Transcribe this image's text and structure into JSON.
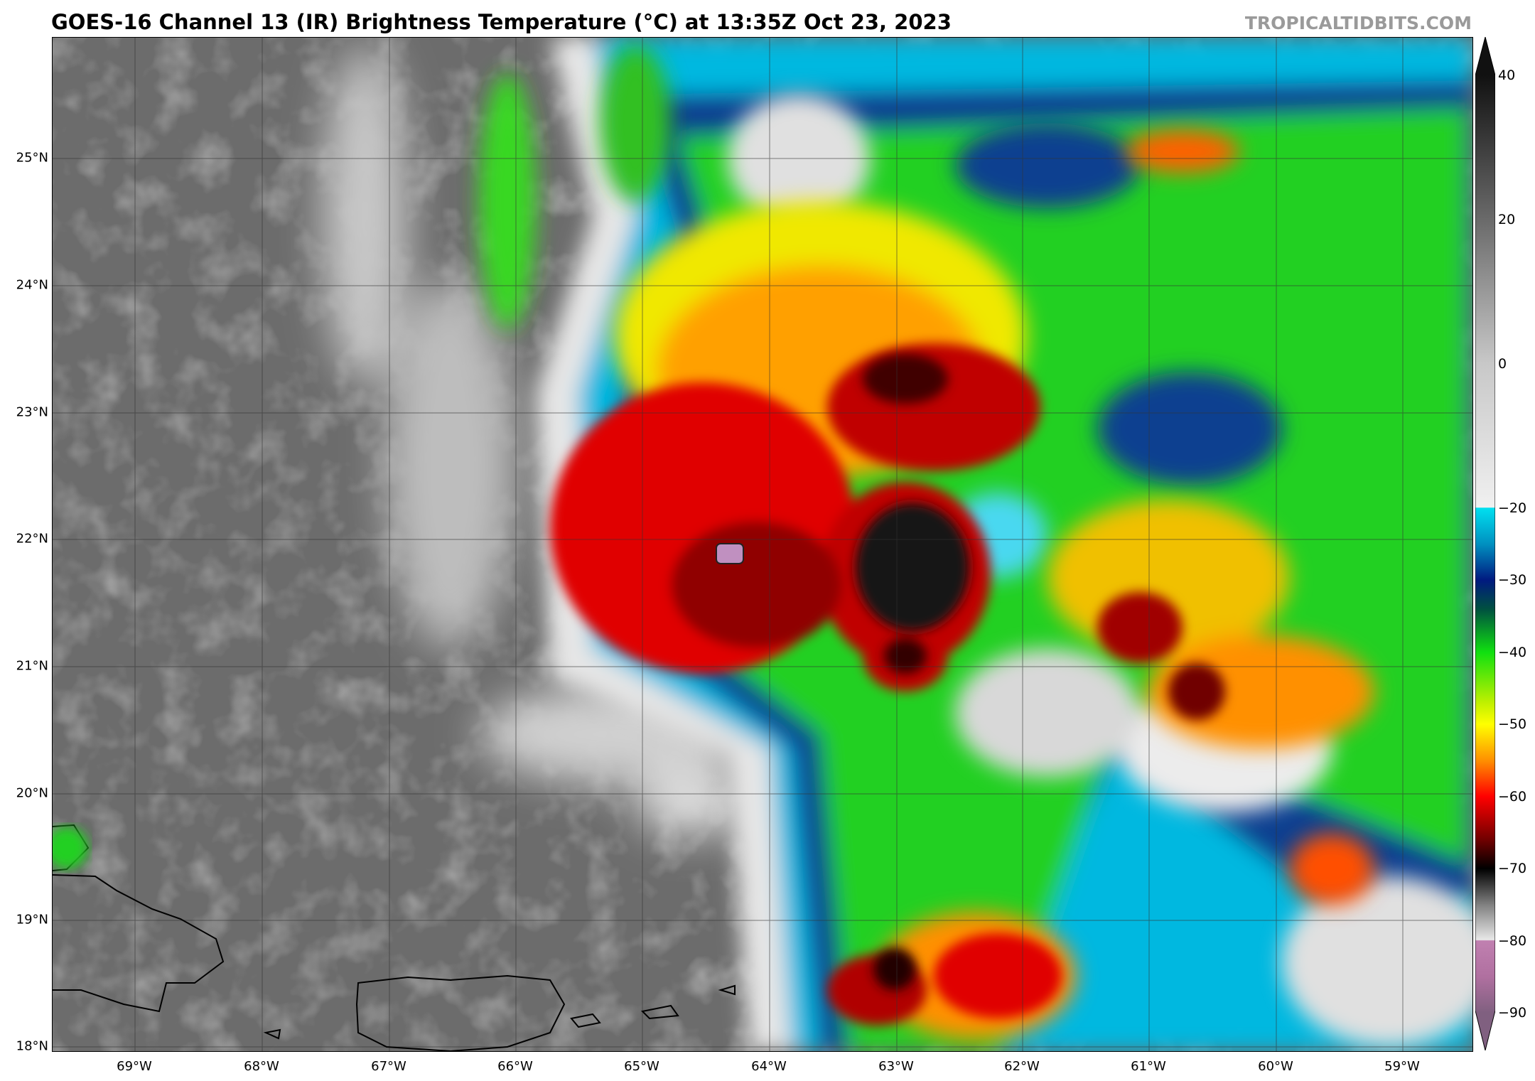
{
  "title": "GOES-16 Channel 13 (IR) Brightness Temperature (°C) at 13:35Z Oct 23, 2023",
  "watermark": "TROPICALTIDBITS.COM",
  "lat_labels": [
    "25°N",
    "24°N",
    "23°N",
    "22°N",
    "21°N",
    "20°N",
    "19°N",
    "18°N"
  ],
  "lon_labels": [
    "69°W",
    "68°W",
    "67°W",
    "66°W",
    "65°W",
    "64°W",
    "63°W",
    "62°W",
    "61°W",
    "60°W",
    "59°W"
  ],
  "colorbar": {
    "ticks": [
      "40",
      "20",
      "0",
      "−20",
      "−30",
      "−40",
      "−50",
      "−60",
      "−70",
      "−80",
      "−90"
    ],
    "range": [
      -90,
      40
    ],
    "stops": [
      {
        "t": 40,
        "c": "#111111"
      },
      {
        "t": 20,
        "c": "#6a6a6a"
      },
      {
        "t": 0,
        "c": "#c8c8c8"
      },
      {
        "t": -19.9,
        "c": "#f0f0f0"
      },
      {
        "t": -20,
        "c": "#00e0f0"
      },
      {
        "t": -25,
        "c": "#0090c0"
      },
      {
        "t": -30,
        "c": "#001a80"
      },
      {
        "t": -34,
        "c": "#005040"
      },
      {
        "t": -40,
        "c": "#10e010"
      },
      {
        "t": -47,
        "c": "#c0f000"
      },
      {
        "t": -50,
        "c": "#ffff00"
      },
      {
        "t": -55,
        "c": "#ff9000"
      },
      {
        "t": -60,
        "c": "#ff0000"
      },
      {
        "t": -66,
        "c": "#700000"
      },
      {
        "t": -70,
        "c": "#000000"
      },
      {
        "t": -75,
        "c": "#808080"
      },
      {
        "t": -79.9,
        "c": "#e8e8e8"
      },
      {
        "t": -80,
        "c": "#c080b0"
      },
      {
        "t": -85,
        "c": "#b070a0"
      },
      {
        "t": -90,
        "c": "#806080"
      }
    ]
  },
  "colors": {
    "land_outline": "#000000",
    "background_clear": "#6c6c6c"
  }
}
